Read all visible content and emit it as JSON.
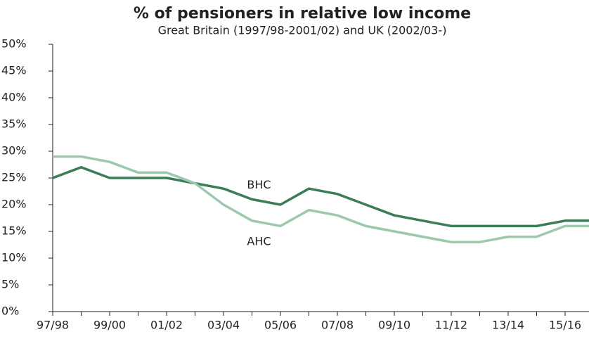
{
  "chart_data": {
    "type": "line",
    "title": "% of pensioners in relative low income",
    "subtitle": "Great Britain (1997/98-2001/02) and UK (2002/03-)",
    "categories": [
      "97/98",
      null,
      "99/00",
      null,
      "01/02",
      null,
      "03/04",
      null,
      "05/06",
      null,
      "07/08",
      null,
      "09/10",
      null,
      "11/12",
      null,
      "13/14",
      null,
      "15/16",
      null
    ],
    "series": [
      {
        "name": "BHC",
        "color": "#3a7d57",
        "values": [
          25,
          27,
          25,
          25,
          25,
          24,
          23,
          21,
          20,
          23,
          22,
          20,
          18,
          17,
          16,
          16,
          16,
          16,
          17,
          17
        ]
      },
      {
        "name": "AHC",
        "color": "#9cc9ad",
        "values": [
          29,
          29,
          28,
          26,
          26,
          24,
          20,
          17,
          16,
          19,
          18,
          16,
          15,
          14,
          13,
          13,
          14,
          14,
          16,
          16
        ]
      }
    ],
    "ylim": [
      0,
      50
    ],
    "yticks": [
      {
        "value": 0,
        "label": "0%"
      },
      {
        "value": 5,
        "label": "5%"
      },
      {
        "value": 10,
        "label": "10%"
      },
      {
        "value": 15,
        "label": "15%"
      },
      {
        "value": 20,
        "label": "20%"
      },
      {
        "value": 25,
        "label": "25%"
      },
      {
        "value": 30,
        "label": "30%"
      },
      {
        "value": 35,
        "label": "35%"
      },
      {
        "value": 40,
        "label": "40%"
      },
      {
        "value": 45,
        "label": "45%"
      },
      {
        "value": 50,
        "label": "50%"
      }
    ],
    "grid": false
  }
}
